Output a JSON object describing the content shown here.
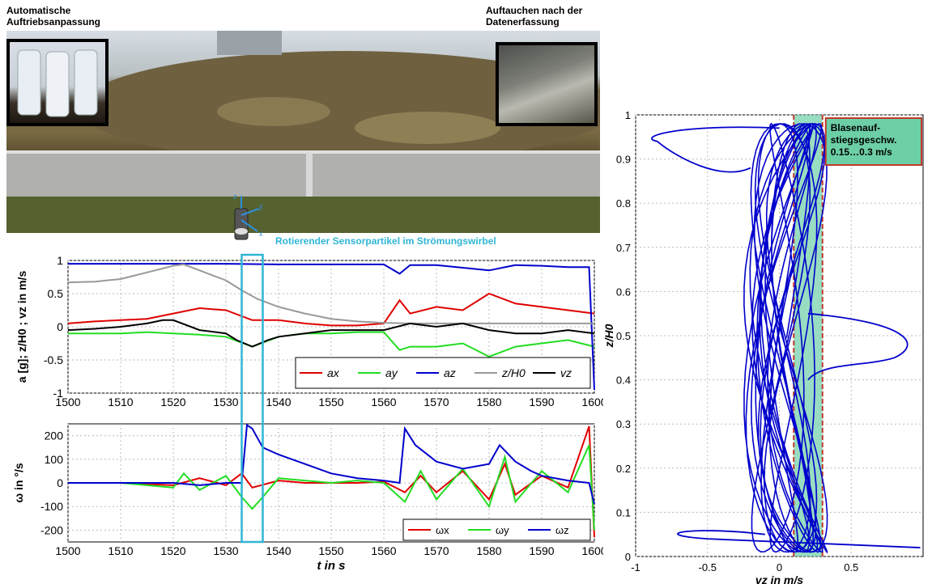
{
  "captions": {
    "top_left": [
      "Automatische",
      "Auftriebsanpassung"
    ],
    "top_right": [
      "Auftauchen nach der",
      "Datenerfassung"
    ],
    "rotating": "Rotierender Sensorpartikel im Strömungswirbel",
    "bubble": [
      "Blasenauf-",
      "stiegsgeschw.",
      "0.15…0.3 m/s"
    ]
  },
  "colors": {
    "red": "#e00000",
    "green": "#22dd22",
    "blue": "#0000cc",
    "gray": "#999999",
    "black": "#000000",
    "cyan": "#2fb6d6",
    "bubble_fill": "#6ccfa6",
    "bubble_border": "#c0392b"
  },
  "chart_data": [
    {
      "type": "line",
      "xlim": [
        1500,
        1600
      ],
      "ylim": [
        -1,
        1
      ],
      "xticks": [
        "1500",
        "1510",
        "1520",
        "1530",
        "1540",
        "1550",
        "1560",
        "1570",
        "1580",
        "1590",
        "1600"
      ],
      "yticks": [
        "1",
        "0.5",
        "0",
        "-0.5",
        "-1"
      ],
      "ylabel": "a [g]; z/H0 ; vz in m/s",
      "legend": [
        "ax",
        "ay",
        "az",
        "z/H0",
        "vz"
      ],
      "highlight_x": [
        1533,
        1537
      ],
      "series": [
        {
          "name": "ax",
          "color": "red",
          "x": [
            1500,
            1505,
            1510,
            1515,
            1520,
            1525,
            1530,
            1535,
            1540,
            1545,
            1550,
            1555,
            1560,
            1563,
            1565,
            1570,
            1575,
            1580,
            1585,
            1590,
            1595,
            1600
          ],
          "y": [
            0.05,
            0.08,
            0.1,
            0.12,
            0.2,
            0.28,
            0.25,
            0.1,
            0.1,
            0.05,
            0.02,
            0.02,
            0.05,
            0.4,
            0.2,
            0.3,
            0.25,
            0.5,
            0.35,
            0.3,
            0.25,
            0.2
          ]
        },
        {
          "name": "ay",
          "color": "green",
          "x": [
            1500,
            1505,
            1510,
            1515,
            1520,
            1525,
            1530,
            1535,
            1540,
            1545,
            1550,
            1555,
            1560,
            1563,
            1565,
            1570,
            1575,
            1580,
            1585,
            1590,
            1595,
            1600
          ],
          "y": [
            -0.1,
            -0.1,
            -0.1,
            -0.08,
            -0.1,
            -0.12,
            -0.15,
            -0.3,
            -0.15,
            -0.1,
            -0.1,
            -0.08,
            -0.08,
            -0.35,
            -0.3,
            -0.3,
            -0.25,
            -0.45,
            -0.3,
            -0.25,
            -0.2,
            -0.3
          ]
        },
        {
          "name": "az",
          "color": "blue",
          "x": [
            1500,
            1510,
            1520,
            1530,
            1540,
            1550,
            1560,
            1563,
            1565,
            1570,
            1580,
            1585,
            1590,
            1595,
            1599,
            1600
          ],
          "y": [
            0.95,
            0.95,
            0.95,
            0.95,
            0.94,
            0.94,
            0.94,
            0.8,
            0.93,
            0.93,
            0.85,
            0.93,
            0.92,
            0.9,
            0.9,
            -0.95
          ]
        },
        {
          "name": "z/H0",
          "color": "gray",
          "x": [
            1500,
            1505,
            1510,
            1515,
            1520,
            1522,
            1525,
            1530,
            1533,
            1536,
            1540,
            1545,
            1550,
            1555,
            1560,
            1565,
            1600
          ],
          "y": [
            0.67,
            0.68,
            0.72,
            0.82,
            0.92,
            0.94,
            0.85,
            0.7,
            0.55,
            0.42,
            0.3,
            0.2,
            0.12,
            0.08,
            0.06,
            0.05,
            0.05
          ]
        },
        {
          "name": "vz",
          "color": "black",
          "x": [
            1500,
            1505,
            1510,
            1515,
            1518,
            1520,
            1525,
            1530,
            1532,
            1535,
            1538,
            1540,
            1545,
            1550,
            1555,
            1560,
            1565,
            1570,
            1575,
            1580,
            1585,
            1590,
            1595,
            1600
          ],
          "y": [
            -0.05,
            -0.03,
            0.0,
            0.05,
            0.1,
            0.1,
            -0.05,
            -0.1,
            -0.2,
            -0.3,
            -0.2,
            -0.15,
            -0.1,
            -0.05,
            -0.05,
            -0.05,
            0.05,
            0.0,
            0.05,
            -0.05,
            -0.1,
            -0.1,
            -0.05,
            -0.1
          ]
        }
      ]
    },
    {
      "type": "line",
      "xlim": [
        1500,
        1600
      ],
      "ylim": [
        -250,
        250
      ],
      "xticks": [
        "1500",
        "1510",
        "1520",
        "1530",
        "1540",
        "1550",
        "1560",
        "1570",
        "1580",
        "1590",
        "1600"
      ],
      "yticks": [
        "200",
        "100",
        "0",
        "-100",
        "-200"
      ],
      "xlabel": "t in s",
      "ylabel": "ω in °/s",
      "legend": [
        "ωx",
        "ωy",
        "ωz"
      ],
      "series": [
        {
          "name": "ωx",
          "color": "red",
          "x": [
            1500,
            1510,
            1520,
            1525,
            1530,
            1533,
            1535,
            1540,
            1545,
            1550,
            1555,
            1560,
            1564,
            1567,
            1570,
            1575,
            1580,
            1583,
            1585,
            1590,
            1595,
            1599,
            1600
          ],
          "y": [
            0,
            0,
            -10,
            20,
            -10,
            40,
            -20,
            10,
            0,
            0,
            0,
            5,
            -40,
            30,
            -40,
            50,
            -70,
            80,
            -50,
            30,
            -20,
            240,
            -230
          ]
        },
        {
          "name": "ωy",
          "color": "green",
          "x": [
            1500,
            1510,
            1520,
            1522,
            1525,
            1530,
            1533,
            1535,
            1537,
            1540,
            1545,
            1550,
            1555,
            1560,
            1564,
            1567,
            1570,
            1575,
            1580,
            1583,
            1585,
            1590,
            1595,
            1599,
            1600
          ],
          "y": [
            0,
            0,
            -20,
            40,
            -30,
            30,
            -60,
            -110,
            -60,
            20,
            10,
            0,
            10,
            0,
            -80,
            50,
            -70,
            60,
            -100,
            110,
            -80,
            50,
            -40,
            160,
            -200
          ]
        },
        {
          "name": "ωz",
          "color": "blue",
          "x": [
            1500,
            1510,
            1520,
            1525,
            1530,
            1533,
            1534,
            1535,
            1537,
            1540,
            1545,
            1550,
            1555,
            1560,
            1563,
            1564,
            1566,
            1570,
            1575,
            1580,
            1582,
            1585,
            1588,
            1590,
            1595,
            1599,
            1600
          ],
          "y": [
            0,
            0,
            0,
            -10,
            0,
            0,
            245,
            230,
            150,
            120,
            80,
            40,
            20,
            10,
            0,
            230,
            160,
            90,
            60,
            80,
            160,
            90,
            50,
            30,
            10,
            0,
            -90
          ]
        }
      ]
    },
    {
      "type": "line",
      "xlim": [
        -1,
        1
      ],
      "ylim": [
        0,
        1
      ],
      "xticks": [
        "-1",
        "-0.5",
        "0",
        "0.5"
      ],
      "yticks": [
        "1",
        "0.9",
        "0.8",
        "0.7",
        "0.6",
        "0.5",
        "0.4",
        "0.3",
        "0.2",
        "0.1",
        "0"
      ],
      "xlabel": "vz in m/s",
      "ylabel": "z/H0",
      "band_x": [
        0.1,
        0.3
      ]
    }
  ]
}
